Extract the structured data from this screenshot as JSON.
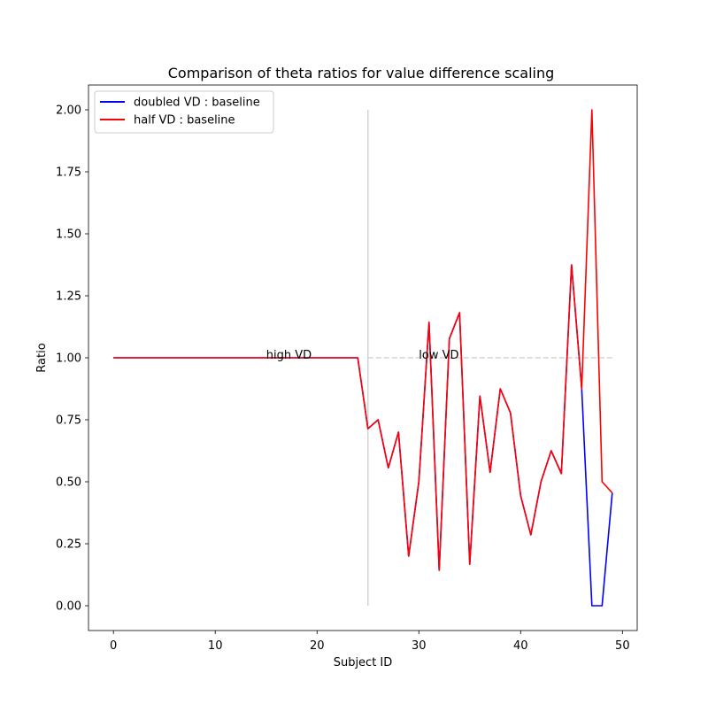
{
  "chart_data": {
    "type": "line",
    "title": "Comparison of theta ratios for value difference scaling",
    "xlabel": "Subject ID",
    "ylabel": "Ratio",
    "xlim": [
      -2.45,
      51.45
    ],
    "ylim": [
      -0.1,
      2.1
    ],
    "xticks": [
      0,
      10,
      20,
      30,
      40,
      50
    ],
    "yticks": [
      0.0,
      0.25,
      0.5,
      0.75,
      1.0,
      1.25,
      1.5,
      1.75,
      2.0
    ],
    "ytick_labels": [
      "0.00",
      "0.25",
      "0.50",
      "0.75",
      "1.00",
      "1.25",
      "1.50",
      "1.75",
      "2.00"
    ],
    "legend_position": "top-left",
    "grid": false,
    "x": [
      0,
      1,
      2,
      3,
      4,
      5,
      6,
      7,
      8,
      9,
      10,
      11,
      12,
      13,
      14,
      15,
      16,
      17,
      18,
      19,
      20,
      21,
      22,
      23,
      24,
      25,
      26,
      27,
      28,
      29,
      30,
      31,
      32,
      33,
      34,
      35,
      36,
      37,
      38,
      39,
      40,
      41,
      42,
      43,
      44,
      45,
      46,
      47,
      48,
      49
    ],
    "series": [
      {
        "name": "doubled VD : baseline",
        "color": "#0000ff",
        "values": [
          1,
          1,
          1,
          1,
          1,
          1,
          1,
          1,
          1,
          1,
          1,
          1,
          1,
          1,
          1,
          1,
          1,
          1,
          1,
          1,
          1,
          1,
          1,
          1,
          1,
          0.714,
          0.75,
          0.556,
          0.7,
          0.2,
          0.5,
          1.143,
          0.143,
          1.077,
          1.182,
          0.167,
          0.846,
          0.538,
          0.875,
          0.778,
          0.444,
          0.286,
          0.5,
          0.625,
          0.533,
          1.375,
          0.875,
          0.0,
          0.0,
          0.455
        ]
      },
      {
        "name": "half VD : baseline",
        "color": "#ff0000",
        "values": [
          1,
          1,
          1,
          1,
          1,
          1,
          1,
          1,
          1,
          1,
          1,
          1,
          1,
          1,
          1,
          1,
          1,
          1,
          1,
          1,
          1,
          1,
          1,
          1,
          1,
          0.714,
          0.75,
          0.556,
          0.7,
          0.2,
          0.5,
          1.143,
          0.143,
          1.077,
          1.182,
          0.167,
          0.846,
          0.538,
          0.875,
          0.778,
          0.444,
          0.286,
          0.5,
          0.625,
          0.533,
          1.375,
          0.875,
          2.0,
          0.5,
          0.455
        ]
      }
    ],
    "divider": {
      "x": 25,
      "y_range": [
        0,
        2
      ],
      "color": "#d3d3d3"
    },
    "reference_line": {
      "y": 1.0,
      "x_range": [
        25,
        49
      ],
      "color": "#d3d3d3",
      "style": "dashed"
    },
    "annotations": [
      {
        "text": "high VD",
        "x": 15,
        "y": 1.0
      },
      {
        "text": "low VD",
        "x": 30,
        "y": 1.0
      }
    ]
  }
}
